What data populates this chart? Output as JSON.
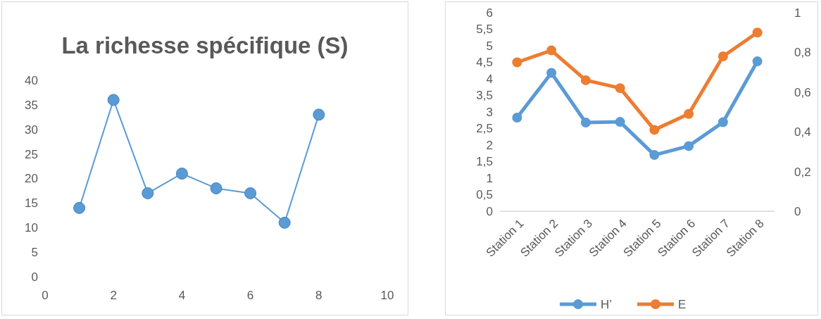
{
  "chart_data": [
    {
      "type": "line",
      "title": "La richesse spécifique (S)",
      "x": [
        1,
        2,
        3,
        4,
        5,
        6,
        7,
        8
      ],
      "series": [
        {
          "color": "#5b9bd5",
          "values": [
            14,
            36,
            17,
            21,
            18,
            17,
            11,
            33
          ]
        }
      ],
      "xlim": [
        0,
        10
      ],
      "xticks": [
        0,
        2,
        4,
        6,
        8,
        10
      ],
      "ylim": [
        0,
        40
      ],
      "yticks": [
        0,
        5,
        10,
        15,
        20,
        25,
        30,
        35,
        40
      ],
      "marker": "circle",
      "line_style": "solid",
      "grid": false,
      "legend": false
    },
    {
      "type": "line",
      "categories": [
        "Station 1",
        "Station 2",
        "Station 3",
        "Station 4",
        "Station 5",
        "Station 6",
        "Station 7",
        "Station 8"
      ],
      "series": [
        {
          "name": "H’",
          "color": "#5b9bd5",
          "values": [
            2.83,
            4.18,
            2.68,
            2.7,
            1.7,
            1.97,
            2.69,
            4.53
          ]
        },
        {
          "name": "E",
          "color": "#ed7d31",
          "axis": "y2",
          "values": [
            0.75,
            0.81,
            0.66,
            0.62,
            0.41,
            0.49,
            0.78,
            0.9
          ]
        }
      ],
      "ylim": [
        0,
        6
      ],
      "yticks": [
        0,
        {
          "value": 0.5,
          "label": "0,5"
        },
        1,
        {
          "value": 1.5,
          "label": "1,5"
        },
        2,
        {
          "value": 2.5,
          "label": "2,5"
        },
        3,
        {
          "value": 3.5,
          "label": "3,5"
        },
        4,
        {
          "value": 4.5,
          "label": "4,5"
        },
        5,
        {
          "value": 5.5,
          "label": "5,5"
        },
        6
      ],
      "y2lim": [
        0,
        1
      ],
      "y2ticks": [
        0,
        {
          "value": 0.2,
          "label": "0,2"
        },
        {
          "value": 0.4,
          "label": "0,4"
        },
        {
          "value": 0.6,
          "label": "0,6"
        },
        {
          "value": 0.8,
          "label": "0,8"
        },
        1
      ],
      "marker": "circle",
      "line_style": "solid",
      "grid": false,
      "legend": "bottom"
    }
  ]
}
